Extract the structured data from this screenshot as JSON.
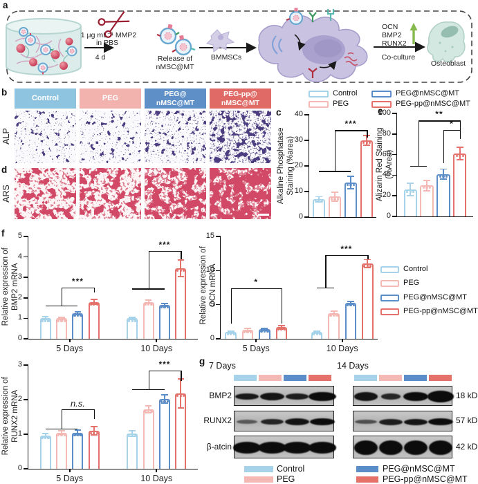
{
  "panels": {
    "a": "a",
    "b": "b",
    "c": "c",
    "d": "d",
    "e": "e",
    "f": "f",
    "g": "g"
  },
  "schematic": {
    "mmp2_line1": "1 μg mL⁻¹ MMP2",
    "mmp2_line2": "in PBS",
    "duration": "4 d",
    "release_line1": "Release of",
    "release_line2": "nMSC@MT",
    "cells": "BMMSCs",
    "marker1": "OCN",
    "marker2": "BMP2",
    "marker3": "RUNX2",
    "coculture": "Co-culture",
    "osteoblast": "Osteoblast"
  },
  "groups": [
    {
      "label": "Control",
      "color": "#a6d2ea"
    },
    {
      "label": "PEG",
      "color": "#f5b9b5"
    },
    {
      "label": "PEG@nMSC@MT",
      "color": "#5b8dc9"
    },
    {
      "label": "PEG-pp@nMSC@MT",
      "color": "#e4726b"
    }
  ],
  "panel_b": {
    "row_label": "ALP",
    "headers": [
      "Control",
      "PEG",
      "PEG@\nnMSC@MT",
      "PEG-pp@\nnMSC@MT"
    ],
    "header_colors": [
      "#8fc4e0",
      "#f2b3af",
      "#5f8fc7",
      "#e06a66"
    ]
  },
  "panel_d": {
    "row_label": "ARS"
  },
  "stains": {
    "alp_color": "#4b3d80",
    "ars_color": "#d14a66",
    "alp_bg": "#faf9fb",
    "ars_bg": "#fdf5f5"
  },
  "chart_data": [
    {
      "id": "alp_quant",
      "panel": "c",
      "type": "bar",
      "ylabel": "Alkaline Phosphatase\nStaining (%area)",
      "categories": [
        "Control",
        "PEG",
        "PEG@nMSC@MT",
        "PEG-pp@nMSC@MT"
      ],
      "values": [
        7,
        8,
        13.5,
        30
      ],
      "errors": [
        1,
        1.8,
        2.5,
        1.8
      ],
      "ylim": [
        0,
        40
      ],
      "yticks": [
        0,
        10,
        20,
        30,
        40
      ],
      "significance": [
        {
          "label": "***",
          "span": [
            0,
            2
          ],
          "target": 3,
          "low": 18,
          "high": 34,
          "drop": 3
        }
      ]
    },
    {
      "id": "ars_quant",
      "panel": "e",
      "type": "bar",
      "ylabel": "Alizarin Red Staining\n(%Area)",
      "categories": [
        "Control",
        "PEG",
        "PEG@nMSC@MT",
        "PEG-pp@nMSC@MT"
      ],
      "values": [
        26,
        30,
        41,
        61
      ],
      "errors": [
        6,
        5,
        5,
        6
      ],
      "ylim": [
        0,
        100
      ],
      "yticks": [
        0,
        20,
        40,
        60,
        80,
        100
      ],
      "significance": [
        {
          "label": "**",
          "span": [
            0,
            1
          ],
          "target": 3,
          "low": 49,
          "high": 93,
          "drop": 9
        },
        {
          "label": "*",
          "span": [
            2,
            2
          ],
          "target": 3,
          "low": 52,
          "high": 84,
          "drop": 9
        }
      ]
    },
    {
      "id": "bmp2_mrna",
      "panel": "f",
      "type": "bar",
      "ylabel": "Relative expression of\nBMP2 mRNA",
      "categories": [
        "5 Days",
        "10 Days"
      ],
      "series": [
        {
          "name": "Control",
          "values": [
            1.0,
            1.0
          ]
        },
        {
          "name": "PEG",
          "values": [
            1.0,
            1.8
          ]
        },
        {
          "name": "PEG@nMSC@MT",
          "values": [
            1.25,
            1.65
          ]
        },
        {
          "name": "PEG-pp@nMSC@MT",
          "values": [
            1.8,
            3.45
          ]
        }
      ],
      "errors": [
        [
          0.07,
          0.05
        ],
        [
          0.05,
          0.08
        ],
        [
          0.06,
          0.08
        ],
        [
          0.12,
          0.4
        ]
      ],
      "ylim": [
        0,
        5
      ],
      "yticks": [
        0,
        1,
        2,
        3,
        4,
        5
      ],
      "significance": [
        {
          "label": "***",
          "span": [
            0,
            2
          ],
          "target": 3,
          "low": 1.62,
          "high": 2.5,
          "drop": 0.25
        },
        {
          "label": "***",
          "span": [
            4,
            6
          ],
          "target": 7,
          "low": 2.45,
          "high": 4.3,
          "drop": 0.4
        }
      ]
    },
    {
      "id": "ocn_mrna",
      "panel": "f",
      "type": "bar",
      "ylabel": "Relative expression of\nOCN mRNA",
      "categories": [
        "5 Days",
        "10 Days"
      ],
      "series": [
        {
          "name": "Control",
          "values": [
            1.0,
            1.0
          ]
        },
        {
          "name": "PEG",
          "values": [
            1.3,
            3.8
          ]
        },
        {
          "name": "PEG@nMSC@MT",
          "values": [
            1.4,
            5.3
          ]
        },
        {
          "name": "PEG-pp@nMSC@MT",
          "values": [
            1.7,
            11.0
          ]
        }
      ],
      "errors": [
        [
          0.15,
          0.15
        ],
        [
          0.2,
          0.25
        ],
        [
          0.15,
          0.2
        ],
        [
          0.25,
          0.6
        ]
      ],
      "ylim": [
        0,
        15
      ],
      "yticks": [
        0,
        5,
        10,
        15
      ],
      "significance": [
        {
          "label": "*",
          "type": "bracket",
          "span": [
            0,
            0
          ],
          "target": 3,
          "low": 2.2,
          "high": 7.4
        },
        {
          "label": "***",
          "span": [
            4,
            5
          ],
          "target": 7,
          "low": 7.5,
          "high": 12.3,
          "drop": 0.6
        }
      ]
    },
    {
      "id": "runx2_mrna",
      "panel": "f",
      "type": "bar",
      "ylabel": "Relative expression of\nRUNX2 mRNA",
      "categories": [
        "5 Days",
        "10 Days"
      ],
      "series": [
        {
          "name": "Control",
          "values": [
            0.97,
            1.02
          ]
        },
        {
          "name": "PEG",
          "values": [
            1.05,
            1.72
          ]
        },
        {
          "name": "PEG@nMSC@MT",
          "values": [
            1.05,
            2.02
          ]
        },
        {
          "name": "PEG-pp@nMSC@MT",
          "values": [
            1.1,
            2.18
          ]
        }
      ],
      "errors": [
        [
          0.05,
          0.08
        ],
        [
          0.05,
          0.1
        ],
        [
          0.07,
          0.12
        ],
        [
          0.12,
          0.42
        ]
      ],
      "ylim": [
        0,
        3
      ],
      "yticks": [
        0,
        1,
        2,
        3
      ],
      "significance": [
        {
          "label": "n.s.",
          "italic": true,
          "span": [
            0,
            2
          ],
          "target": 3,
          "low": 1.17,
          "high": 1.73,
          "drop": 0.28
        },
        {
          "label": "***",
          "span": [
            4,
            6
          ],
          "target": 7,
          "low": 2.3,
          "high": 2.85,
          "drop": 0.3
        }
      ]
    }
  ],
  "panel_g": {
    "timepoints": [
      "7 Days",
      "14 Days"
    ],
    "rows": [
      {
        "protein": "BMP2",
        "size": "18 kD"
      },
      {
        "protein": "RUNX2",
        "size": "57 kD"
      },
      {
        "protein": "β-atcin",
        "size": "42 kD"
      }
    ],
    "legend_left": [
      "Control",
      "PEG"
    ],
    "legend_right": [
      "PEG@nMSC@MT",
      "PEG-pp@nMSC@MT"
    ],
    "band_patterns": {
      "7 Days": [
        [
          [
            0.92,
            0.8,
            0.32
          ],
          [
            0.95,
            0.85,
            0.4
          ],
          [
            0.9,
            0.78,
            0.3
          ],
          [
            1,
            0.95,
            0.48
          ]
        ],
        [
          [
            0.55,
            0.72,
            0.2
          ],
          [
            0.85,
            0.8,
            0.28
          ],
          [
            0.95,
            0.85,
            0.34
          ],
          [
            1,
            0.88,
            0.36
          ]
        ],
        [
          [
            1,
            0.97,
            0.5
          ],
          [
            1,
            0.97,
            0.52
          ],
          [
            1,
            0.97,
            0.5
          ],
          [
            1,
            0.97,
            0.5
          ]
        ]
      ],
      "14 Days": [
        [
          [
            0.95,
            0.82,
            0.44
          ],
          [
            0.85,
            0.7,
            0.3
          ],
          [
            1,
            0.88,
            0.48
          ],
          [
            1,
            0.92,
            0.56
          ]
        ],
        [
          [
            0.6,
            0.75,
            0.2
          ],
          [
            0.9,
            0.8,
            0.3
          ],
          [
            0.95,
            0.8,
            0.3
          ],
          [
            1,
            0.85,
            0.34
          ]
        ],
        [
          [
            1,
            0.8,
            0.64
          ],
          [
            1,
            0.8,
            0.64
          ],
          [
            1,
            0.82,
            0.64
          ],
          [
            1,
            0.82,
            0.64
          ]
        ]
      ]
    }
  }
}
